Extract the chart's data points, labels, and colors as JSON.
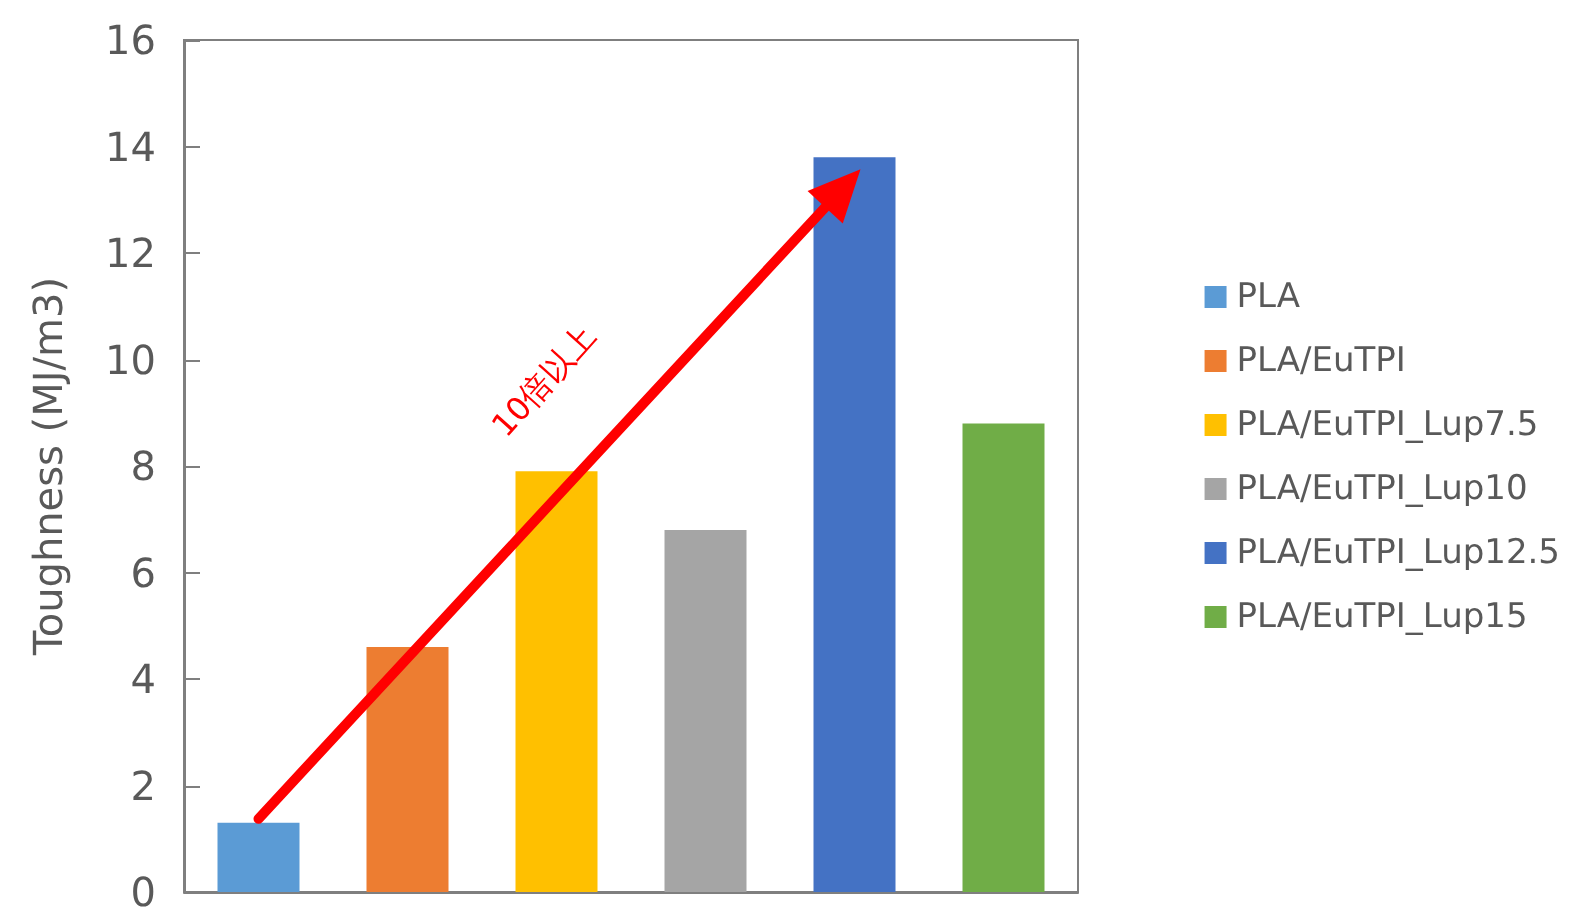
{
  "chart_data": {
    "type": "bar",
    "ylabel": "Toughness (MJ/m3)",
    "categories": [
      null,
      null,
      null,
      null,
      null,
      null
    ],
    "series": [
      {
        "name": "PLA",
        "color": "#5b9bd5",
        "values": [
          1.3,
          null,
          null,
          null,
          null,
          null
        ]
      },
      {
        "name": "PLA/EuTPI",
        "color": "#ed7d31",
        "values": [
          null,
          4.6,
          null,
          null,
          null,
          null
        ]
      },
      {
        "name": "PLA/EuTPI_Lup7.5",
        "color": "#ffc000",
        "values": [
          null,
          null,
          7.9,
          null,
          null,
          null
        ]
      },
      {
        "name": "PLA/EuTPI_Lup10",
        "color": "#a5a5a5",
        "values": [
          null,
          null,
          null,
          6.8,
          null,
          null
        ]
      },
      {
        "name": "PLA/EuTPI_Lup12.5",
        "color": "#4472c4",
        "values": [
          null,
          null,
          null,
          null,
          13.8,
          null
        ]
      },
      {
        "name": "PLA/EuTPI_Lup15",
        "color": "#70ad47",
        "values": [
          null,
          null,
          null,
          null,
          null,
          8.8
        ]
      }
    ],
    "ylim": [
      0,
      16
    ],
    "yticks": [
      0,
      2,
      4,
      6,
      8,
      10,
      12,
      14,
      16
    ],
    "grid": false,
    "legend": "right",
    "annotations": [
      "10倍以上"
    ]
  }
}
